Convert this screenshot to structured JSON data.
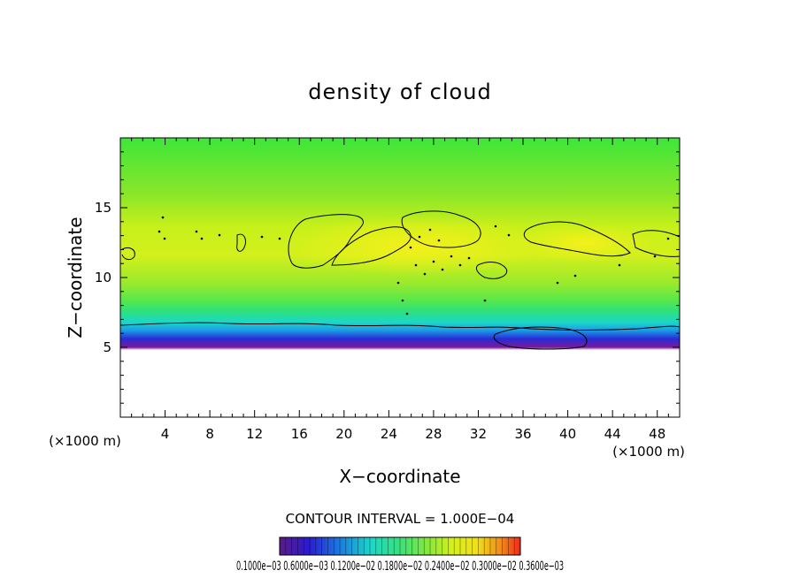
{
  "chart_data": {
    "type": "heatmap",
    "title": "density of cloud",
    "xlabel": "X−coordinate",
    "ylabel": "Z−coordinate",
    "x_unit": "(×1000 m)",
    "y_unit": "(×1000 m)",
    "xlim": [
      0,
      50
    ],
    "ylim": [
      0,
      20
    ],
    "x_ticks": [
      "4",
      "8",
      "12",
      "16",
      "20",
      "24",
      "28",
      "32",
      "36",
      "40",
      "44",
      "48"
    ],
    "x_tick_values": [
      4,
      8,
      12,
      16,
      20,
      24,
      28,
      32,
      36,
      40,
      44,
      48
    ],
    "y_ticks": [
      "5",
      "10",
      "15"
    ],
    "y_tick_values": [
      5,
      10,
      15
    ],
    "cloud_base_km": 5,
    "contour_interval_text": "CONTOUR INTERVAL = 1.000E−04",
    "colorbar_labels": "0.1000e−03 0.6000e−03 0.1200e−02 0.1800e−02 0.2400e−02 0.3000e−02 0.3600e−03",
    "colormap": [
      "#5a1b8a",
      "#2a1bd0",
      "#1b7be0",
      "#1bd8c8",
      "#3be07a",
      "#8ae83a",
      "#d6f01a",
      "#f0e01a",
      "#f08a1a",
      "#f02a1a"
    ],
    "background_color": "#ffffff"
  }
}
